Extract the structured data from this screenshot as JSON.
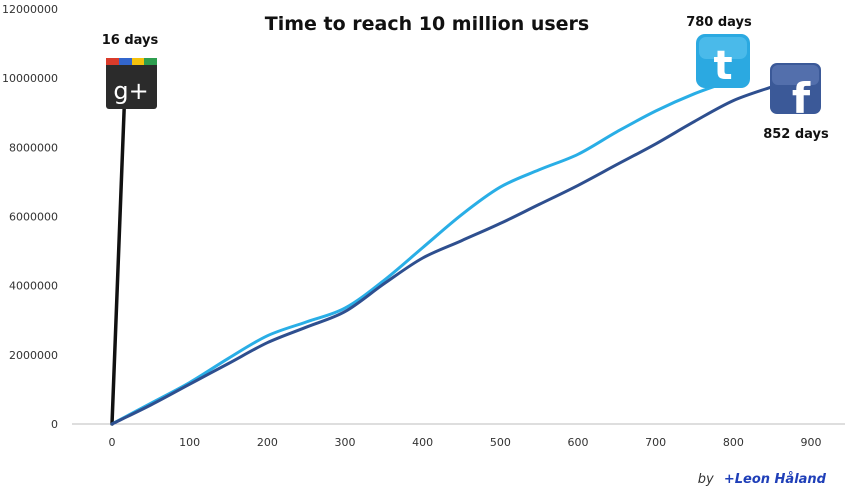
{
  "chart_data": {
    "type": "line",
    "title": "Time to reach 10 million users",
    "xlabel": "",
    "ylabel": "",
    "xlim": [
      0,
      900
    ],
    "ylim": [
      0,
      12000000
    ],
    "x_ticks": [
      "0",
      "100",
      "200",
      "300",
      "400",
      "500",
      "600",
      "700",
      "800",
      "900"
    ],
    "y_ticks": [
      "0",
      "2000000",
      "4000000",
      "6000000",
      "8000000",
      "10000000",
      "12000000"
    ],
    "grid": false,
    "legend": "none",
    "series": [
      {
        "icon": "google-plus-icon",
        "days_label": "16 days",
        "color": "#111111",
        "x": [
          0,
          16
        ],
        "y": [
          0,
          9300000
        ]
      },
      {
        "icon": "twitter-icon",
        "days_label": "780 days",
        "color": "#29aee6",
        "x": [
          0,
          50,
          100,
          150,
          200,
          250,
          300,
          350,
          400,
          450,
          500,
          550,
          600,
          650,
          700,
          750,
          800
        ],
        "y": [
          0,
          600000,
          1200000,
          1900000,
          2550000,
          2950000,
          3350000,
          4150000,
          5100000,
          6050000,
          6850000,
          7350000,
          7800000,
          8450000,
          9050000,
          9550000,
          9950000
        ]
      },
      {
        "icon": "facebook-icon",
        "days_label": "852 days",
        "color": "#2e4f8f",
        "x": [
          0,
          50,
          100,
          150,
          200,
          250,
          300,
          350,
          400,
          450,
          500,
          550,
          600,
          650,
          700,
          750,
          800,
          850
        ],
        "y": [
          0,
          550000,
          1150000,
          1750000,
          2350000,
          2800000,
          3250000,
          4050000,
          4800000,
          5300000,
          5800000,
          6350000,
          6900000,
          7500000,
          8100000,
          8750000,
          9350000,
          9750000
        ]
      }
    ]
  },
  "credit": {
    "by": "by",
    "name": "+Leon Håland"
  },
  "icons": {
    "google_plus_glyph": "g+",
    "twitter_glyph": "t",
    "facebook_glyph": "f"
  }
}
